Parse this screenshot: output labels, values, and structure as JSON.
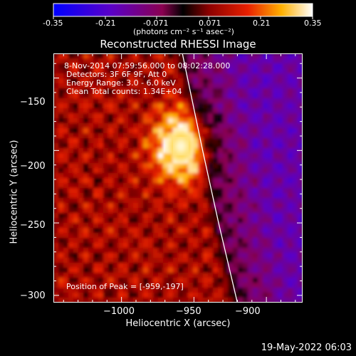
{
  "colorbar": {
    "ticks": [
      "-0.35",
      "-0.21",
      "-0.071",
      "0.071",
      "0.21",
      "0.35"
    ],
    "units": "(photons cm⁻² s⁻¹ asec⁻²)",
    "min": -0.35,
    "max": 0.35
  },
  "chart_data": {
    "type": "heatmap",
    "title": "Reconstructed RHESSI Image",
    "xlabel": "Heliocentric X (arcsec)",
    "ylabel": "Heliocentric Y (arcsec)",
    "xlim": [
      -1047,
      -875
    ],
    "ylim": [
      -305,
      -133
    ],
    "x_ticks": [
      -1000,
      -950,
      -900
    ],
    "y_ticks": [
      -300,
      -250,
      -200,
      -150
    ],
    "x_tick_labels": [
      "−1000",
      "−950",
      "−900"
    ],
    "y_tick_labels": [
      "−300",
      "−250",
      "−200",
      "−150"
    ],
    "peak": {
      "x": -959,
      "y": -197
    },
    "limb_curve": [
      [
        -958,
        -133
      ],
      [
        -944,
        -200
      ],
      [
        -933,
        -250
      ],
      [
        -920,
        -305
      ]
    ],
    "colormap": "blue-purple-red-yellow-white",
    "annotations": [
      "8-Nov-2014 07:59:56.000 to 08:02:28.000",
      "Detectors: 3F 6F 9F, Att 0",
      "Energy Range: 3.0 - 6.0 keV",
      "Clean     Total counts: 1.34E+04",
      "Position of Peak = [-959,-197]"
    ]
  },
  "timestamp": "19-May-2022 06:03"
}
